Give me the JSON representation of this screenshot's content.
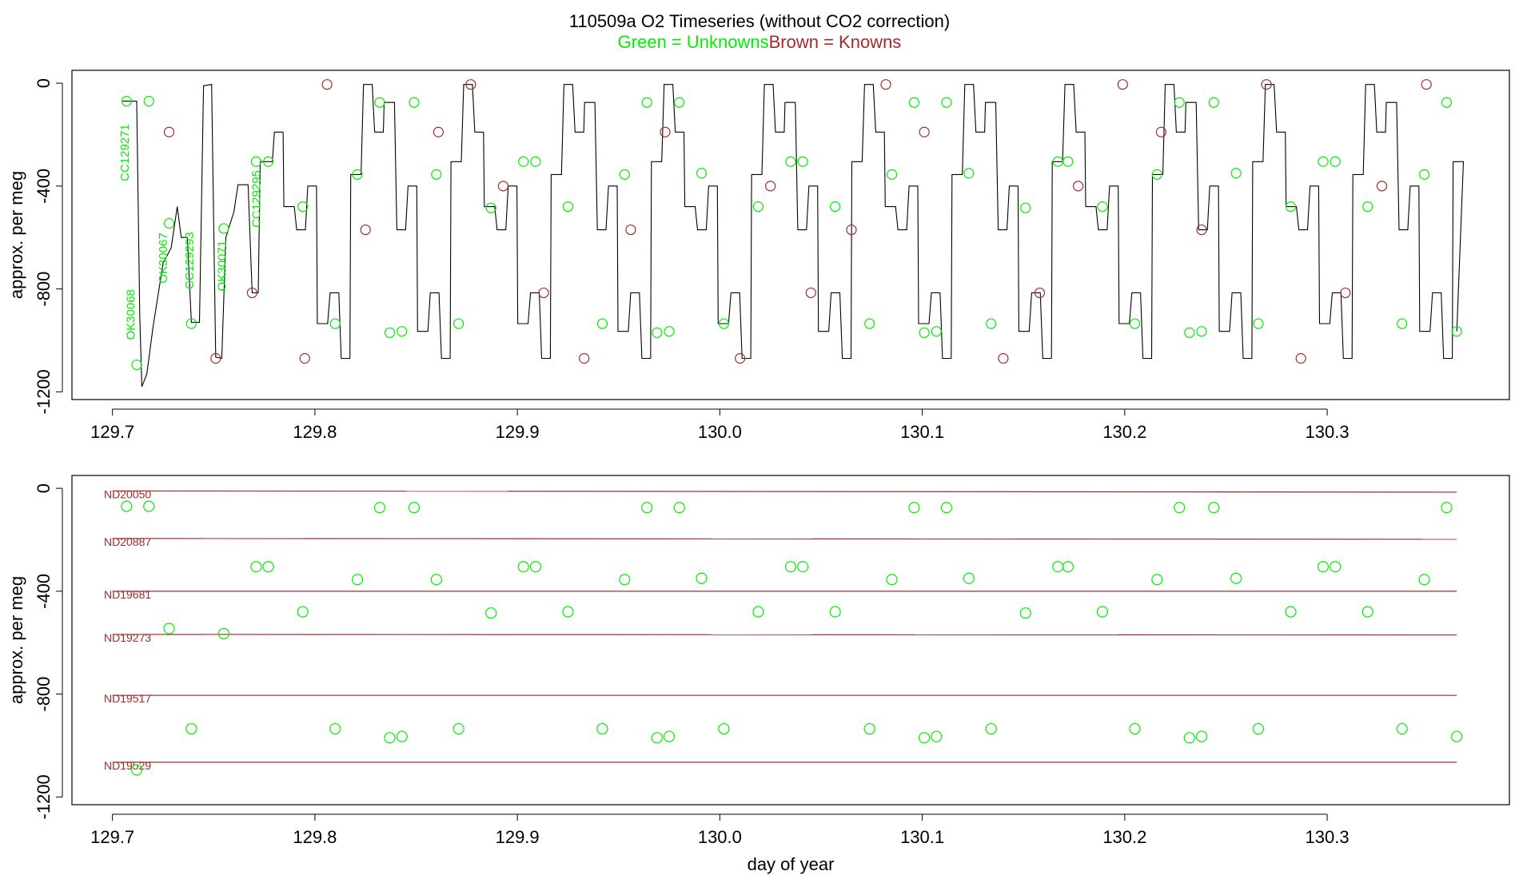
{
  "title": "110509a   O2 Timeseries (without CO2 correction)",
  "subtitle_green": "Green = Unknowns",
  "subtitle_brown": "Brown = Knowns",
  "colors": {
    "unknown": "#00ee00",
    "known": "#a52a2a",
    "trace": "#000000"
  },
  "chart_data": [
    {
      "type": "line",
      "panel": "top",
      "xlabel": "",
      "ylabel": "approx. per meg",
      "xlim": [
        129.68,
        130.39
      ],
      "ylim": [
        -1230,
        50
      ],
      "xticks": [
        "129.7",
        "129.8",
        "129.9",
        "130.0",
        "130.1",
        "130.2",
        "130.3"
      ],
      "yticks": [
        "0",
        "-400",
        "-800",
        "-1200"
      ],
      "trace_levels": [
        {
          "name": "ND20050",
          "value": -5
        },
        {
          "name": "ND20887",
          "value": -190
        },
        {
          "name": "ND19681",
          "value": -400
        },
        {
          "name": "ND19273",
          "value": -570
        },
        {
          "name": "ND19517",
          "value": -815
        },
        {
          "name": "ND19529",
          "value": -1070
        }
      ],
      "cycle_sequence": [
        "ND20887",
        "ND19273",
        "ND19681",
        "ND19517",
        "ND19529",
        "ND20050"
      ],
      "annotations": [
        {
          "text": "CC129271",
          "x": 129.708,
          "y": -270
        },
        {
          "text": "OK30068",
          "x": 129.711,
          "y": -900
        },
        {
          "text": "OK30067",
          "x": 129.727,
          "y": -680
        },
        {
          "text": "CC129293",
          "x": 129.74,
          "y": -690
        },
        {
          "text": "OK30071",
          "x": 129.756,
          "y": -710
        },
        {
          "text": "CC129295",
          "x": 129.773,
          "y": -450
        }
      ]
    },
    {
      "type": "scatter",
      "panel": "bottom",
      "xlabel": "day of year",
      "ylabel": "approx. per meg",
      "xlim": [
        129.68,
        130.39
      ],
      "ylim": [
        -1230,
        50
      ],
      "xticks": [
        "129.7",
        "129.8",
        "129.9",
        "130.0",
        "130.1",
        "130.2",
        "130.3"
      ],
      "yticks": [
        "0",
        "-400",
        "-800",
        "-1200"
      ],
      "standards": [
        {
          "name": "ND20050",
          "x0": 129.7,
          "y0": -10,
          "x1": 130.364,
          "y1": -15
        },
        {
          "name": "ND20887",
          "x0": 129.7,
          "y0": -195,
          "x1": 130.364,
          "y1": -198
        },
        {
          "name": "ND19681",
          "x0": 129.7,
          "y0": -400,
          "x1": 130.364,
          "y1": -400
        },
        {
          "name": "ND19273",
          "x0": 129.7,
          "y0": -568,
          "x1": 130.364,
          "y1": -570
        },
        {
          "name": "ND19517",
          "x0": 129.7,
          "y0": -805,
          "x1": 130.364,
          "y1": -805
        },
        {
          "name": "ND19529",
          "x0": 129.7,
          "y0": -1065,
          "x1": 130.364,
          "y1": -1065
        }
      ],
      "unknowns": [
        [
          129.707,
          -70
        ],
        [
          129.718,
          -70
        ],
        [
          129.712,
          -1095
        ],
        [
          129.728,
          -545
        ],
        [
          129.739,
          -935
        ],
        [
          129.755,
          -565
        ],
        [
          129.771,
          -305
        ],
        [
          129.777,
          -305
        ],
        [
          129.794,
          -480
        ],
        [
          129.81,
          -935
        ],
        [
          129.821,
          -355
        ],
        [
          129.832,
          -75
        ],
        [
          129.837,
          -970
        ],
        [
          129.843,
          -965
        ],
        [
          129.849,
          -75
        ],
        [
          129.86,
          -355
        ],
        [
          129.871,
          -935
        ],
        [
          129.887,
          -485
        ],
        [
          129.903,
          -305
        ],
        [
          129.909,
          -305
        ],
        [
          129.925,
          -480
        ],
        [
          129.942,
          -935
        ],
        [
          129.953,
          -355
        ],
        [
          129.964,
          -75
        ],
        [
          129.969,
          -970
        ],
        [
          129.975,
          -965
        ],
        [
          129.98,
          -75
        ],
        [
          129.991,
          -350
        ],
        [
          130.002,
          -935
        ],
        [
          130.019,
          -480
        ],
        [
          130.035,
          -305
        ],
        [
          130.041,
          -305
        ],
        [
          130.057,
          -480
        ],
        [
          130.074,
          -935
        ],
        [
          130.085,
          -355
        ],
        [
          130.096,
          -75
        ],
        [
          130.101,
          -970
        ],
        [
          130.107,
          -965
        ],
        [
          130.112,
          -75
        ],
        [
          130.123,
          -350
        ],
        [
          130.134,
          -935
        ],
        [
          130.151,
          -485
        ],
        [
          130.167,
          -305
        ],
        [
          130.172,
          -305
        ],
        [
          130.189,
          -480
        ],
        [
          130.205,
          -935
        ],
        [
          130.216,
          -355
        ],
        [
          130.227,
          -75
        ],
        [
          130.232,
          -970
        ],
        [
          130.238,
          -965
        ],
        [
          130.244,
          -75
        ],
        [
          130.255,
          -350
        ],
        [
          130.266,
          -935
        ],
        [
          130.282,
          -480
        ],
        [
          130.298,
          -305
        ],
        [
          130.304,
          -305
        ],
        [
          130.32,
          -480
        ],
        [
          130.337,
          -935
        ],
        [
          130.348,
          -355
        ],
        [
          130.359,
          -75
        ],
        [
          130.364,
          -965
        ]
      ]
    }
  ]
}
